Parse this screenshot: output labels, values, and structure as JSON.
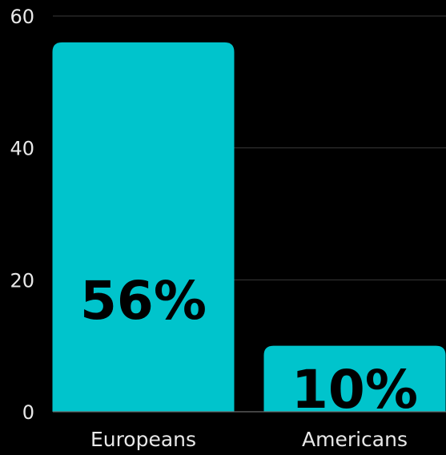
{
  "chart_data": {
    "type": "bar",
    "categories": [
      "Europeans",
      "Americans"
    ],
    "values": [
      56,
      10
    ],
    "data_labels": [
      "56%",
      "10%"
    ],
    "ylim": [
      0,
      60
    ],
    "yticks": [
      0,
      20,
      40,
      60
    ],
    "title": "",
    "xlabel": "",
    "ylabel": "",
    "grid": true,
    "legend": "none",
    "bar_color": "#00c4cc",
    "background_color": "#000000",
    "text_color": "#e8e8e8",
    "value_label_color": "#000000"
  }
}
